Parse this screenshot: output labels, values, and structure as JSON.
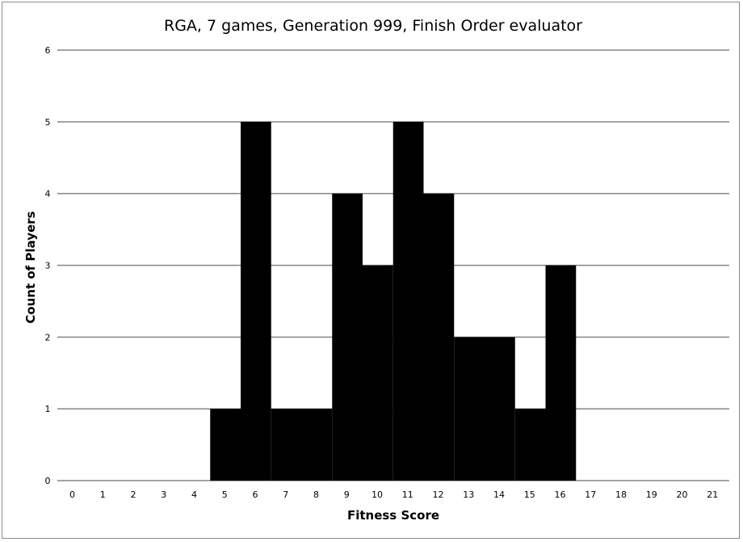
{
  "chart_data": {
    "type": "bar",
    "title": "RGA, 7 games, Generation 999, Finish Order evaluator",
    "xlabel": "Fitness Score",
    "ylabel": "Count of Players",
    "categories": [
      "0",
      "1",
      "2",
      "3",
      "4",
      "5",
      "6",
      "7",
      "8",
      "9",
      "10",
      "11",
      "12",
      "13",
      "14",
      "15",
      "16",
      "17",
      "18",
      "19",
      "20",
      "21"
    ],
    "values": [
      0,
      0,
      0,
      0,
      0,
      1,
      5,
      1,
      1,
      4,
      3,
      5,
      4,
      2,
      2,
      1,
      3,
      0,
      0,
      0,
      0,
      0
    ],
    "ylim": [
      0,
      6
    ],
    "yticks": [
      "0",
      "1",
      "2",
      "3",
      "4",
      "5",
      "6"
    ],
    "grid": true,
    "bar_color": "#000000",
    "legend": "none"
  }
}
